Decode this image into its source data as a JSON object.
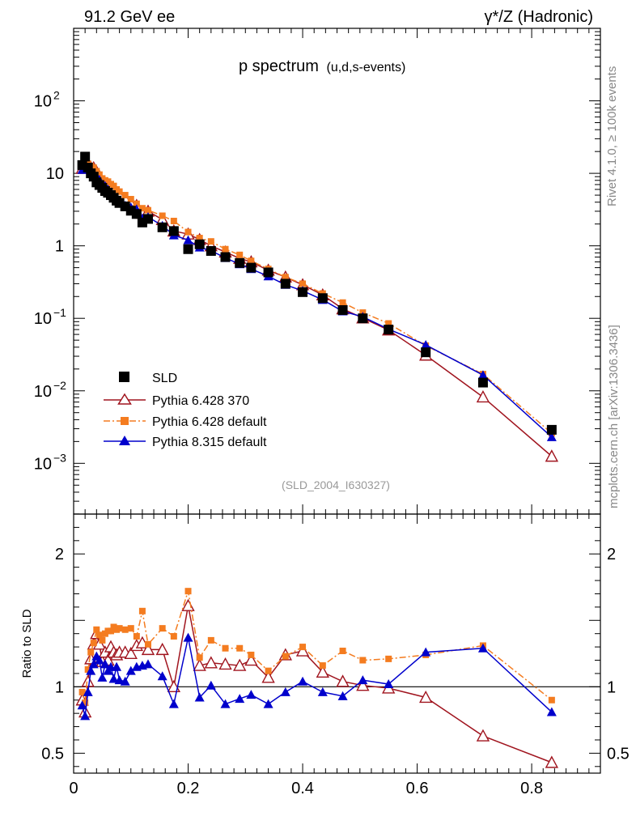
{
  "header": {
    "left": "91.2 GeV ee",
    "right": "γ*/Z (Hadronic)"
  },
  "side": {
    "rivet": "Rivet 4.1.0, ≥ 100k events",
    "mcplots": "mcplots.cern.ch [arXiv:1306.3436]"
  },
  "chart_data": {
    "type": "scatter",
    "title": "p spectrum",
    "subtitle": "(u,d,s-events)",
    "watermark": "(SLD_2004_I630327)",
    "xlim": [
      0,
      0.92
    ],
    "main": {
      "yscale": "log",
      "ylim": [
        0.0001995,
        1000
      ],
      "ytick_labels": [
        {
          "value": 0.001,
          "base": "10",
          "exp": "−3"
        },
        {
          "value": 0.01,
          "base": "10",
          "exp": "−2"
        },
        {
          "value": 0.1,
          "base": "10",
          "exp": "−1"
        },
        {
          "value": 1,
          "base": "1",
          "exp": ""
        },
        {
          "value": 10,
          "base": "10",
          "exp": ""
        },
        {
          "value": 100,
          "base": "10",
          "exp": "2"
        }
      ]
    },
    "ratio": {
      "ylabel": "Ratio to SLD",
      "ylim": [
        0.35,
        2.3
      ],
      "yticks": [
        0.5,
        1,
        2
      ],
      "ytick_labels": [
        "0.5",
        "1",
        "2"
      ]
    },
    "xticks": [
      0,
      0.2,
      0.4,
      0.6,
      0.8
    ],
    "xtick_labels": [
      "0",
      "0.2",
      "0.4",
      "0.6",
      "0.8"
    ],
    "legend": [
      "SLD",
      "Pythia 6.428 370",
      "Pythia 6.428 default",
      "Pythia 8.315 default"
    ],
    "series": [
      {
        "name": "SLD",
        "color": "#000000",
        "marker": "square",
        "x": [
          0.015,
          0.02,
          0.025,
          0.03,
          0.035,
          0.04,
          0.045,
          0.05,
          0.055,
          0.06,
          0.065,
          0.07,
          0.075,
          0.08,
          0.09,
          0.1,
          0.11,
          0.12,
          0.13,
          0.155,
          0.175,
          0.2,
          0.22,
          0.24,
          0.265,
          0.29,
          0.31,
          0.34,
          0.37,
          0.4,
          0.435,
          0.47,
          0.505,
          0.55,
          0.615,
          0.715,
          0.835
        ],
        "y": [
          13,
          17,
          12,
          10,
          9,
          7.5,
          6.9,
          6.3,
          5.7,
          5.4,
          5.0,
          4.6,
          4.2,
          3.9,
          3.5,
          3.05,
          2.75,
          2.1,
          2.35,
          1.8,
          1.6,
          0.9,
          1.05,
          0.85,
          0.7,
          0.58,
          0.5,
          0.43,
          0.3,
          0.23,
          0.19,
          0.13,
          0.1,
          0.07,
          0.034,
          0.013,
          0.0029
        ]
      },
      {
        "name": "Pythia 6.428 370",
        "color": "#a0141e",
        "marker": "open-triangle",
        "line": "solid",
        "x": [
          0.015,
          0.02,
          0.025,
          0.03,
          0.035,
          0.04,
          0.045,
          0.05,
          0.055,
          0.06,
          0.065,
          0.07,
          0.075,
          0.08,
          0.09,
          0.1,
          0.11,
          0.12,
          0.13,
          0.155,
          0.175,
          0.2,
          0.22,
          0.24,
          0.265,
          0.29,
          0.31,
          0.34,
          0.37,
          0.4,
          0.435,
          0.47,
          0.505,
          0.55,
          0.615,
          0.715,
          0.835
        ],
        "y": [
          11.7,
          13.8,
          12.5,
          12.1,
          11.9,
          10.5,
          9.1,
          7.5,
          7.2,
          6.5,
          6.5,
          5.8,
          5.2,
          4.9,
          4.4,
          3.8,
          3.6,
          2.8,
          3.0,
          2.3,
          1.6,
          1.45,
          1.22,
          1.0,
          0.82,
          0.67,
          0.6,
          0.46,
          0.37,
          0.29,
          0.21,
          0.135,
          0.101,
          0.069,
          0.031,
          0.0082,
          0.00125
        ],
        "ratio": [
          0.9,
          0.81,
          1.04,
          1.21,
          1.32,
          1.4,
          1.32,
          1.19,
          1.26,
          1.2,
          1.3,
          1.26,
          1.24,
          1.26,
          1.26,
          1.25,
          1.31,
          1.33,
          1.28,
          1.28,
          1.0,
          1.61,
          1.16,
          1.18,
          1.17,
          1.16,
          1.2,
          1.07,
          1.24,
          1.27,
          1.11,
          1.04,
          1.01,
          0.99,
          0.92,
          0.63,
          0.43
        ]
      },
      {
        "name": "Pythia 6.428 default",
        "color": "#f47c20",
        "marker": "square",
        "line": "dashdot",
        "x": [
          0.015,
          0.02,
          0.025,
          0.03,
          0.035,
          0.04,
          0.045,
          0.05,
          0.055,
          0.06,
          0.065,
          0.07,
          0.075,
          0.08,
          0.09,
          0.1,
          0.11,
          0.12,
          0.13,
          0.155,
          0.175,
          0.2,
          0.22,
          0.24,
          0.265,
          0.29,
          0.31,
          0.34,
          0.37,
          0.4,
          0.435,
          0.47,
          0.505,
          0.55,
          0.615,
          0.715,
          0.835
        ],
        "y": [
          12.5,
          14.9,
          13.6,
          12.6,
          12.0,
          10.7,
          9.6,
          8.5,
          8.0,
          7.7,
          7.1,
          6.7,
          6.0,
          5.6,
          5.0,
          4.4,
          3.8,
          3.3,
          3.1,
          2.6,
          2.2,
          1.55,
          1.28,
          1.15,
          0.9,
          0.75,
          0.62,
          0.48,
          0.37,
          0.3,
          0.22,
          0.165,
          0.12,
          0.085,
          0.042,
          0.017,
          0.0026
        ],
        "ratio": [
          0.96,
          0.88,
          1.13,
          1.26,
          1.33,
          1.43,
          1.39,
          1.35,
          1.4,
          1.42,
          1.42,
          1.45,
          1.43,
          1.44,
          1.43,
          1.44,
          1.38,
          1.57,
          1.32,
          1.44,
          1.38,
          1.72,
          1.22,
          1.35,
          1.29,
          1.29,
          1.24,
          1.12,
          1.23,
          1.3,
          1.16,
          1.27,
          1.2,
          1.21,
          1.24,
          1.31,
          0.9
        ]
      },
      {
        "name": "Pythia 8.315 default",
        "color": "#0000cc",
        "marker": "triangle",
        "line": "solid",
        "x": [
          0.015,
          0.02,
          0.025,
          0.03,
          0.035,
          0.04,
          0.045,
          0.05,
          0.055,
          0.06,
          0.065,
          0.07,
          0.075,
          0.08,
          0.09,
          0.1,
          0.11,
          0.12,
          0.13,
          0.155,
          0.175,
          0.2,
          0.22,
          0.24,
          0.265,
          0.29,
          0.31,
          0.34,
          0.37,
          0.4,
          0.435,
          0.47,
          0.505,
          0.55,
          0.615,
          0.715,
          0.835
        ],
        "y": [
          11.2,
          13.0,
          12.0,
          11.2,
          10.0,
          8.9,
          8.2,
          6.7,
          6.7,
          6.0,
          5.5,
          4.9,
          4.6,
          4.1,
          3.6,
          3.4,
          3.2,
          2.4,
          2.5,
          1.9,
          1.4,
          1.2,
          0.95,
          0.86,
          0.68,
          0.56,
          0.48,
          0.38,
          0.29,
          0.24,
          0.18,
          0.125,
          0.105,
          0.071,
          0.043,
          0.0165,
          0.0023
        ],
        "ratio": [
          0.86,
          0.78,
          0.96,
          1.12,
          1.17,
          1.23,
          1.2,
          1.07,
          1.17,
          1.12,
          1.15,
          1.06,
          1.15,
          1.05,
          1.04,
          1.12,
          1.15,
          1.16,
          1.17,
          1.08,
          0.87,
          1.37,
          0.92,
          1.01,
          0.87,
          0.91,
          0.94,
          0.87,
          0.96,
          1.04,
          0.96,
          0.93,
          1.05,
          1.02,
          1.26,
          1.29,
          0.81
        ]
      }
    ]
  }
}
